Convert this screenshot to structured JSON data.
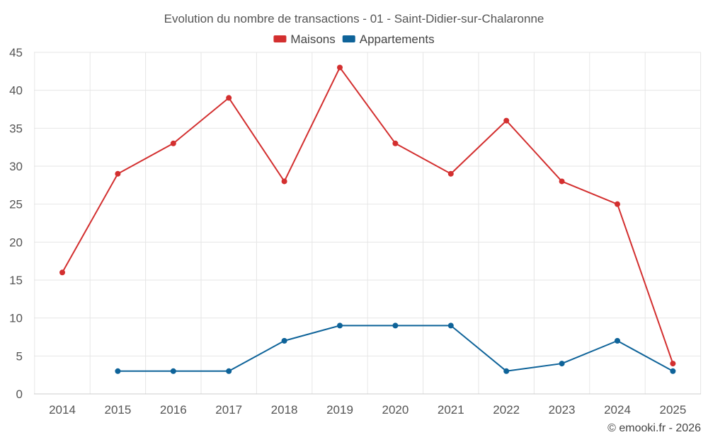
{
  "chart_data": {
    "type": "line",
    "title": "Evolution du nombre de transactions - 01 - Saint-Didier-sur-Chalaronne",
    "xlabel": "",
    "ylabel": "",
    "x": [
      "2014",
      "2015",
      "2016",
      "2017",
      "2018",
      "2019",
      "2020",
      "2021",
      "2022",
      "2023",
      "2024",
      "2025"
    ],
    "ylim": [
      0,
      45
    ],
    "yticks": [
      0,
      5,
      10,
      15,
      20,
      25,
      30,
      35,
      40,
      45
    ],
    "grid": true,
    "legend_position": "top-center",
    "series": [
      {
        "name": "Maisons",
        "color": "#d32f2f",
        "values": [
          16,
          29,
          33,
          39,
          28,
          43,
          33,
          29,
          36,
          28,
          25,
          4
        ]
      },
      {
        "name": "Appartements",
        "color": "#0e6399",
        "values": [
          null,
          3,
          3,
          3,
          7,
          9,
          9,
          9,
          3,
          4,
          7,
          3
        ]
      }
    ]
  },
  "credit": "© emooki.fr - 2026"
}
